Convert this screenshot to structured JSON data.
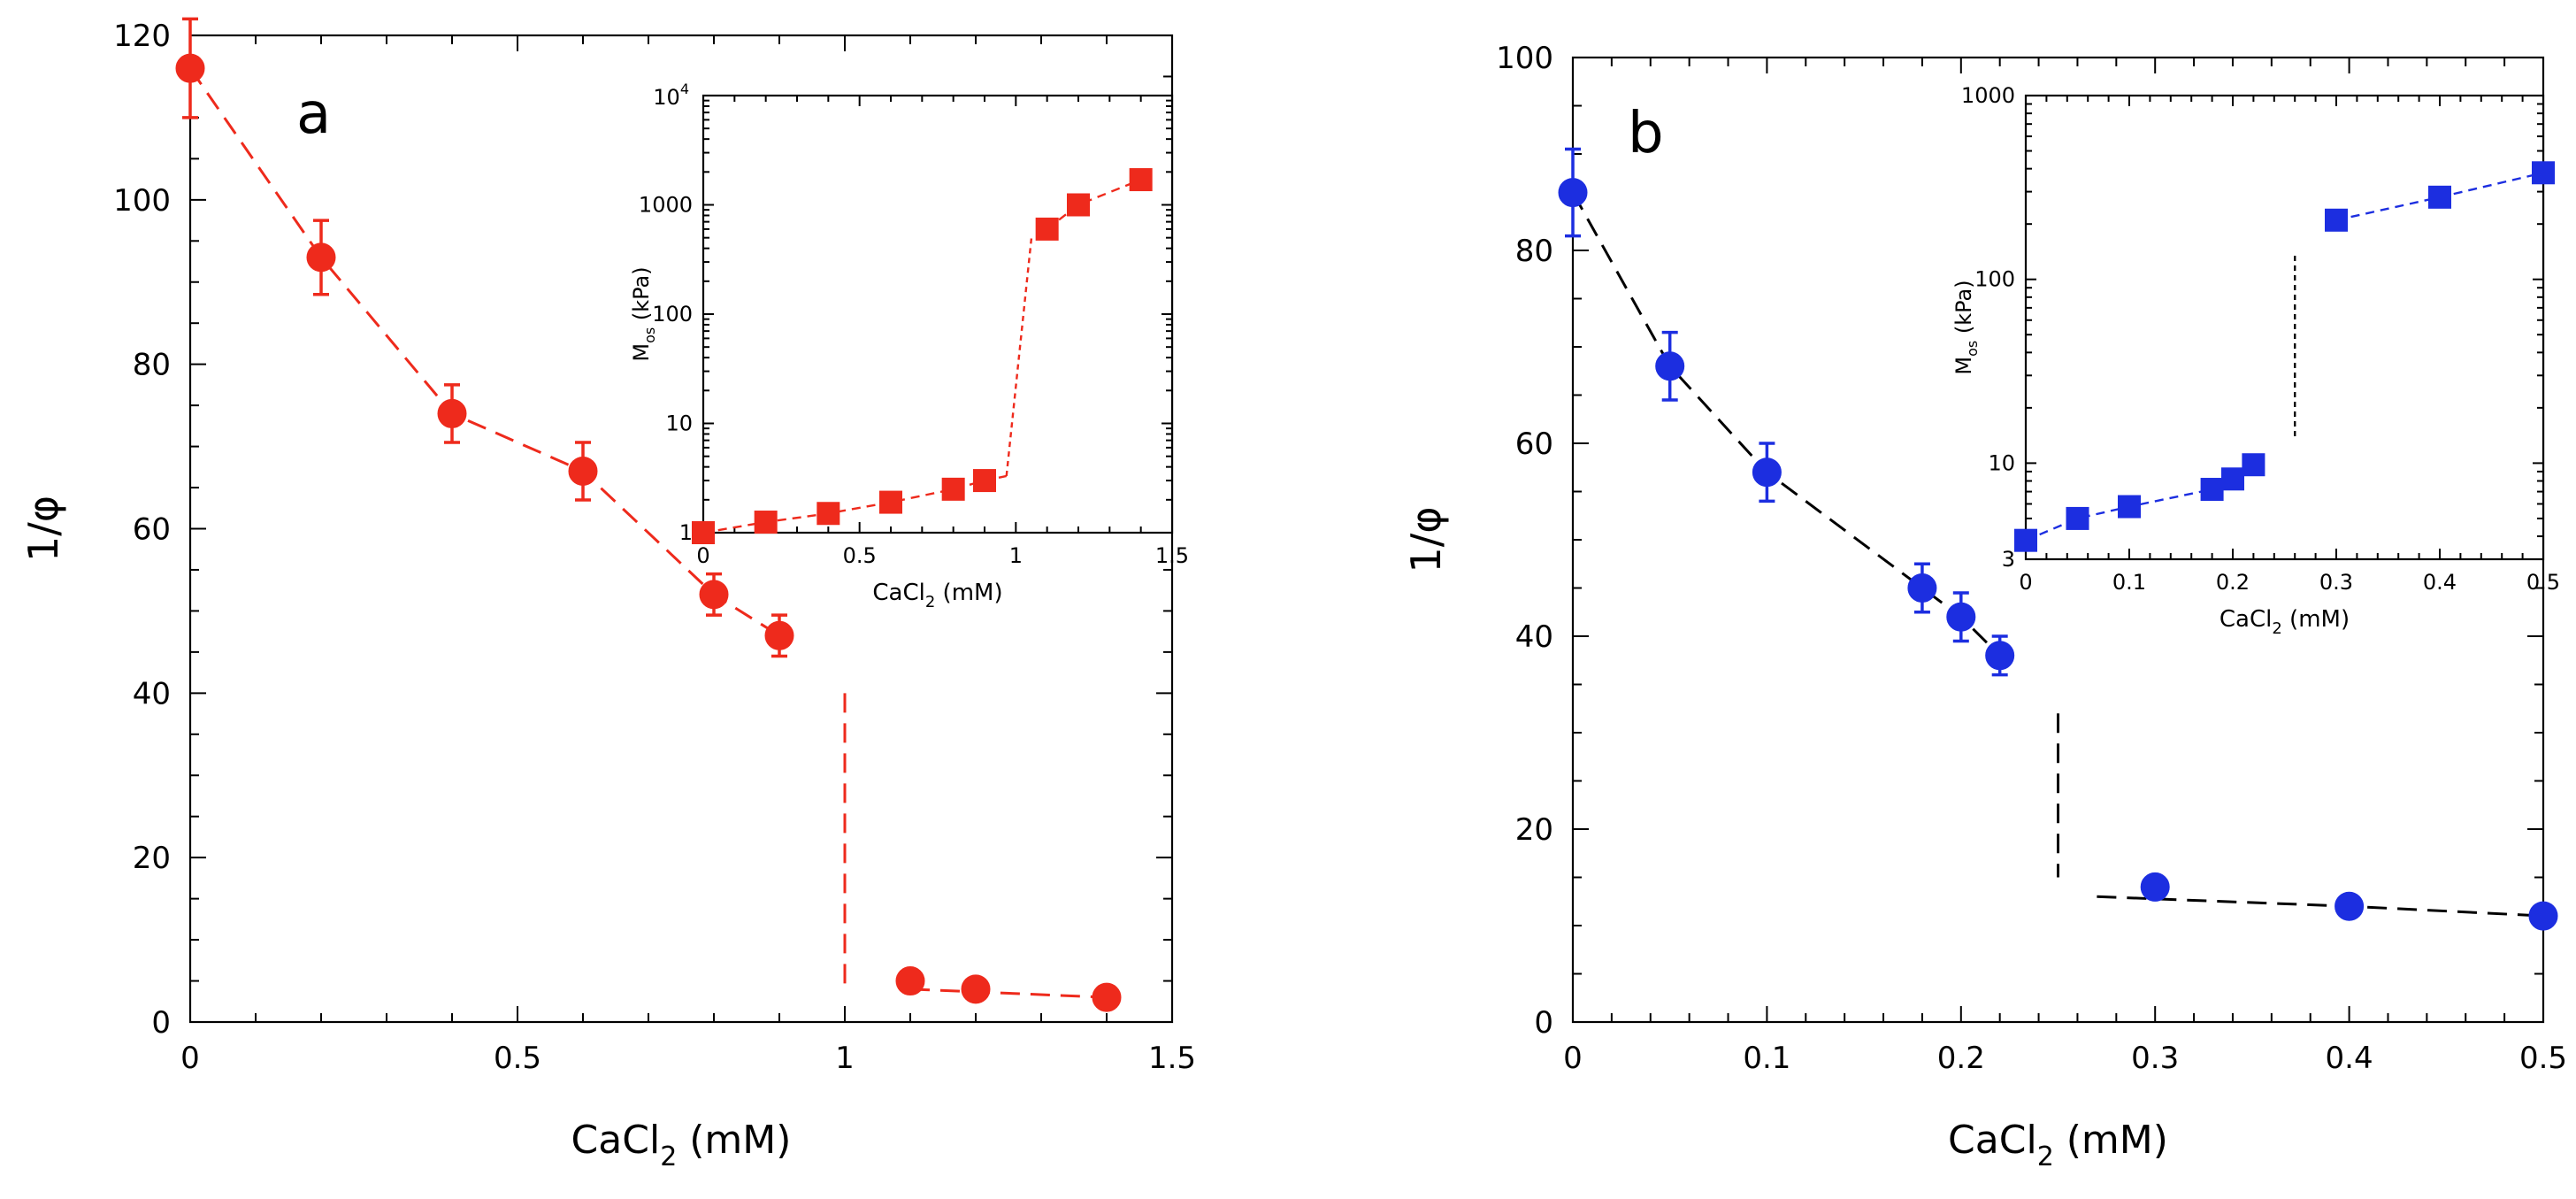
{
  "chart_data": [
    {
      "type": "scatter",
      "panel_label": "a",
      "xlabel": "CaCl",
      "xlabel_sub": "2",
      "xlabel_unit": " (mM)",
      "ylabel": "1/φ",
      "xlim": [
        0,
        1.5
      ],
      "ylim": [
        0,
        120
      ],
      "x_ticks": [
        "0",
        "0.5",
        "1",
        "1.5"
      ],
      "y_ticks": [
        "0",
        "20",
        "40",
        "60",
        "80",
        "100",
        "120"
      ],
      "color": "#ee2a1c",
      "line_color": "#ee2a1c",
      "series": [
        {
          "x": [
            0,
            0.2,
            0.4,
            0.6,
            0.8,
            0.9,
            1.1,
            1.2,
            1.4
          ],
          "y": [
            116,
            93,
            74,
            67,
            52,
            47,
            5,
            4,
            3
          ],
          "err": [
            6,
            4.5,
            3.5,
            3.5,
            2.5,
            2.5,
            0,
            0,
            0
          ]
        }
      ],
      "guide_lines": [
        [
          [
            0,
            116
          ],
          [
            0.2,
            93
          ],
          [
            0.4,
            74
          ],
          [
            0.6,
            67
          ],
          [
            0.8,
            52
          ],
          [
            0.9,
            47
          ]
        ],
        [
          [
            1.0,
            40
          ],
          [
            1.0,
            3.5
          ]
        ],
        [
          [
            1.1,
            4
          ],
          [
            1.4,
            3
          ]
        ]
      ],
      "inset": {
        "type": "scatter",
        "xlabel": "CaCl",
        "xlabel_sub": "2",
        "xlabel_unit": " (mM)",
        "ylabel": "M",
        "ylabel_sub": "os",
        "ylabel_unit": " (kPa)",
        "xlim": [
          0,
          1.5
        ],
        "ylim": [
          1,
          10000
        ],
        "yscale": "log",
        "x_ticks": [
          "0",
          "0.5",
          "1",
          "1.5"
        ],
        "y_ticks": [
          "1",
          "10",
          "100",
          "1000"
        ],
        "y_top_tick_base": "10",
        "y_top_tick_exp": "4",
        "color": "#ee2a1c",
        "series": [
          {
            "x": [
              0,
              0.2,
              0.4,
              0.6,
              0.8,
              0.9,
              1.1,
              1.2,
              1.4
            ],
            "y": [
              1,
              1.25,
              1.5,
              1.9,
              2.5,
              3,
              600,
              1000,
              1700
            ]
          }
        ],
        "guide_lines": [
          [
            [
              0,
              1
            ],
            [
              0.2,
              1.25
            ],
            [
              0.4,
              1.5
            ],
            [
              0.6,
              1.9
            ],
            [
              0.8,
              2.5
            ],
            [
              0.9,
              3
            ],
            [
              0.97,
              3.3
            ]
          ],
          [
            [
              0.97,
              3.3
            ],
            [
              1.05,
              500
            ]
          ],
          [
            [
              1.1,
              600
            ],
            [
              1.2,
              1000
            ],
            [
              1.4,
              1700
            ]
          ]
        ]
      }
    },
    {
      "type": "scatter",
      "panel_label": "b",
      "xlabel": "CaCl",
      "xlabel_sub": "2",
      "xlabel_unit": " (mM)",
      "ylabel": "1/φ",
      "xlim": [
        0,
        0.5
      ],
      "ylim": [
        0,
        100
      ],
      "x_ticks": [
        "0",
        "0.1",
        "0.2",
        "0.3",
        "0.4",
        "0.5"
      ],
      "y_ticks": [
        "0",
        "20",
        "40",
        "60",
        "80",
        "100"
      ],
      "color": "#1c2ee0",
      "line_color": "#000000",
      "series": [
        {
          "x": [
            0,
            0.05,
            0.1,
            0.18,
            0.2,
            0.22,
            0.3,
            0.4,
            0.5
          ],
          "y": [
            86,
            68,
            57,
            45,
            42,
            38,
            14,
            12,
            11
          ],
          "err": [
            4.5,
            3.5,
            3,
            2.5,
            2.5,
            2,
            0,
            0,
            0
          ]
        }
      ],
      "guide_lines": [
        [
          [
            0,
            86
          ],
          [
            0.05,
            68
          ],
          [
            0.1,
            57
          ],
          [
            0.18,
            45
          ],
          [
            0.2,
            42
          ],
          [
            0.22,
            38
          ]
        ],
        [
          [
            0.25,
            32
          ],
          [
            0.25,
            15
          ]
        ],
        [
          [
            0.27,
            13
          ],
          [
            0.4,
            12
          ],
          [
            0.5,
            11
          ]
        ]
      ],
      "inset": {
        "type": "scatter",
        "xlabel": "CaCl",
        "xlabel_sub": "2",
        "xlabel_unit": " (mM)",
        "ylabel": "M",
        "ylabel_sub": "os",
        "ylabel_unit": " (kPa)",
        "xlim": [
          0,
          0.5
        ],
        "ylim": [
          3,
          1000
        ],
        "yscale": "log",
        "x_ticks": [
          "0",
          "0.1",
          "0.2",
          "0.3",
          "0.4",
          "0.5"
        ],
        "y_ticks": [
          "10",
          "100",
          "1000"
        ],
        "y_tick_values": [
          10,
          100,
          1000
        ],
        "y_extra_tick": "3",
        "color": "#1c2ee0",
        "series": [
          {
            "x": [
              0,
              0.05,
              0.1,
              0.18,
              0.2,
              0.22,
              0.3,
              0.4,
              0.5
            ],
            "y": [
              3.8,
              5,
              5.8,
              7.2,
              8.2,
              9.8,
              210,
              280,
              380
            ]
          }
        ],
        "guide_lines": [
          [
            [
              0,
              3.8
            ],
            [
              0.05,
              5
            ],
            [
              0.1,
              5.8
            ],
            [
              0.18,
              7.2
            ],
            [
              0.2,
              8.2
            ],
            [
              0.22,
              9.8
            ]
          ],
          [
            [
              0.26,
              14
            ],
            [
              0.26,
              140
            ]
          ],
          [
            [
              0.3,
              210
            ],
            [
              0.4,
              280
            ],
            [
              0.5,
              380
            ]
          ]
        ]
      }
    }
  ]
}
